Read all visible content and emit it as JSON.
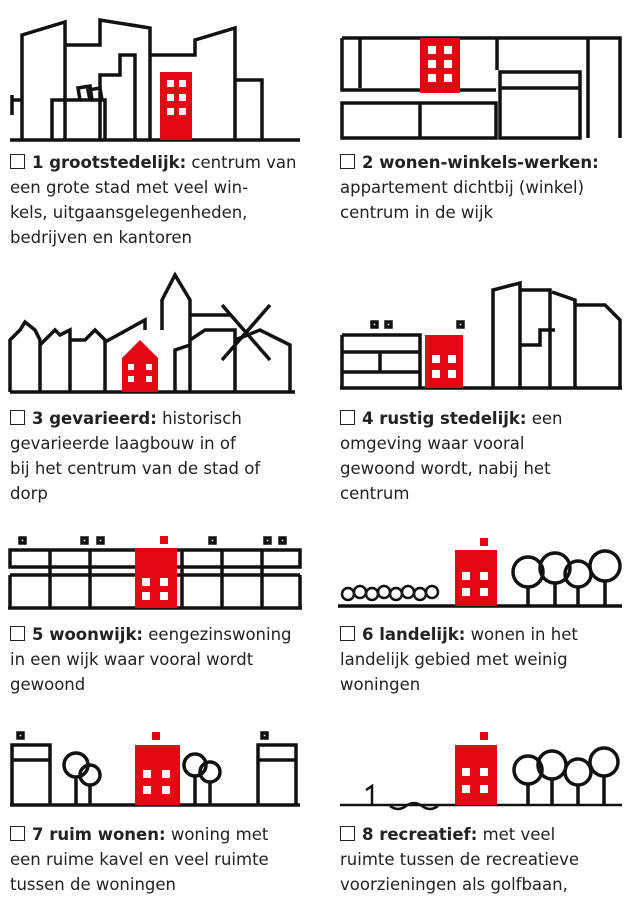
{
  "items": [
    {
      "title": "1 grootstedelijk:",
      "lines": [
        "centrum van",
        "een grote stad met veel win-",
        "kels, uitgaansgelegenheden,",
        "bedrijven en kantoren"
      ]
    },
    {
      "title": "2 wonen-winkels-werken:",
      "lines": [
        "appartement dichtbij (winkel)",
        "centrum in de wijk"
      ]
    },
    {
      "title": "3 gevarieerd:",
      "lines": [
        "historisch",
        "gevarieerde laagbouw in of",
        "bij het centrum van de stad of",
        "dorp"
      ]
    },
    {
      "title": "4 rustig stedelijk:",
      "lines": [
        "een",
        "omgeving waar vooral",
        "gewoond wordt, nabij het",
        "centrum"
      ]
    },
    {
      "title": "5 woonwijk:",
      "lines": [
        "eengezinswoning",
        "in een wijk waar vooral wordt",
        "gewoond"
      ]
    },
    {
      "title": "6 landelijk:",
      "lines": [
        "wonen in het",
        "landelijk gebied met weinig",
        "woningen"
      ]
    },
    {
      "title": "7 ruim wonen:",
      "lines": [
        "woning met",
        "een ruime kavel en veel ruimte",
        "tussen de woningen"
      ]
    },
    {
      "title": "8 recreatief:",
      "lines": [
        "met veel",
        "ruimte tussen de recreatieve",
        "voorzieningen als golfbaan,"
      ]
    }
  ]
}
